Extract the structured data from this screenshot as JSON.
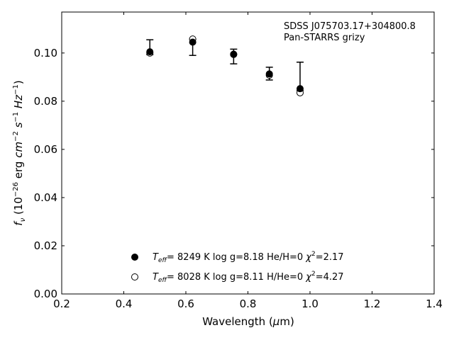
{
  "chart_data": {
    "type": "scatter",
    "title": "",
    "annotation": [
      "SDSS J075703.17+304800.8",
      "Pan-STARRS grizy"
    ],
    "xlabel": {
      "text": "Wavelength (",
      "greek": "μ",
      "unit": "m)"
    },
    "ylabel": {
      "prefix": "f",
      "sub": "ν",
      "pre_exp": " (10",
      "exp1": "−26",
      "mid1": " erg ",
      "cm": "cm",
      "exp2": "−2",
      "s": " s",
      "exp3": "−1",
      "hz": " Hz",
      "exp4": "−1",
      "close": ")"
    },
    "xlim": [
      0.2,
      1.4
    ],
    "ylim": [
      0.0,
      0.117
    ],
    "xticks": [
      0.2,
      0.4,
      0.6,
      0.8,
      1.0,
      1.2,
      1.4
    ],
    "xtick_labels": [
      "0.2",
      "0.4",
      "0.6",
      "0.8",
      "1.0",
      "1.2",
      "1.4"
    ],
    "yticks": [
      0.0,
      0.02,
      0.04,
      0.06,
      0.08,
      0.1
    ],
    "ytick_labels": [
      "0.00",
      "0.02",
      "0.04",
      "0.06",
      "0.08",
      "0.10"
    ],
    "grid": false,
    "legend_position": "bottom-center",
    "observed": {
      "x": [
        0.484,
        0.622,
        0.754,
        0.869,
        0.968
      ],
      "y": [
        0.1005,
        0.1045,
        0.0988,
        0.0915,
        0.0862
      ],
      "err_low": [
        0.0012,
        0.0055,
        0.0033,
        0.0027,
        0.0018
      ],
      "err_high": [
        0.005,
        0.0013,
        0.0028,
        0.0026,
        0.01
      ]
    },
    "series": [
      {
        "legend_prefix": "T",
        "legend_sub": "eff",
        "legend_suffix": "=  8249 K  log g=8.18  He/H=0  ",
        "legend_chi": "χ",
        "legend_chi_exp": "2",
        "legend_chi_val": "=2.17",
        "marker": "filled-circle",
        "color": "#000000",
        "x": [
          0.484,
          0.622,
          0.754,
          0.869,
          0.968
        ],
        "y": [
          0.1005,
          0.1045,
          0.0994,
          0.0913,
          0.0852
        ]
      },
      {
        "legend_prefix": "T",
        "legend_sub": "eff",
        "legend_suffix": "=  8028 K  log g=8.11  H/He=0  ",
        "legend_chi": "χ",
        "legend_chi_exp": "2",
        "legend_chi_val": "=4.27",
        "marker": "open-circle",
        "color": "#000000",
        "x": [
          0.484,
          0.622,
          0.754,
          0.869,
          0.968
        ],
        "y": [
          0.1,
          0.1058,
          0.0995,
          0.0908,
          0.0835
        ]
      }
    ]
  }
}
